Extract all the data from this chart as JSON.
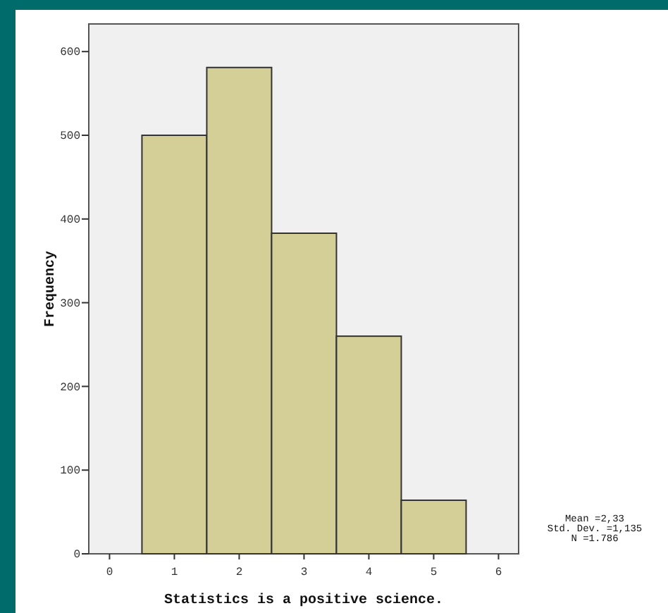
{
  "chart_data": {
    "type": "histogram",
    "xlabel": "Statistics is a positive science.",
    "ylabel": "Frequency",
    "bins": [
      0.5,
      1.5,
      2.5,
      3.5,
      4.5,
      5.5
    ],
    "values": [
      500,
      581,
      383,
      260,
      64
    ],
    "color": "#d3cf97",
    "xlim": [
      -0.32,
      6.31
    ],
    "ylim": [
      0,
      633
    ],
    "xticks": [
      0,
      1,
      2,
      3,
      4,
      5,
      6
    ],
    "yticks": [
      0,
      100,
      200,
      300,
      400,
      500,
      600
    ],
    "grid": false,
    "annotations": [
      "Mean =2,33",
      "Std. Dev. =1,135",
      "N =1.786"
    ]
  }
}
